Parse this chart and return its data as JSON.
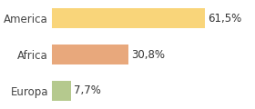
{
  "categories": [
    "Europa",
    "Africa",
    "America"
  ],
  "values": [
    7.7,
    30.8,
    61.5
  ],
  "labels": [
    "7,7%",
    "30,8%",
    "61,5%"
  ],
  "bar_colors": [
    "#b5c98e",
    "#e8a87c",
    "#f9d57a"
  ],
  "xlim": [
    0,
    80
  ],
  "background_color": "#ffffff",
  "bar_height": 0.55,
  "label_fontsize": 8.5,
  "tick_fontsize": 8.5
}
